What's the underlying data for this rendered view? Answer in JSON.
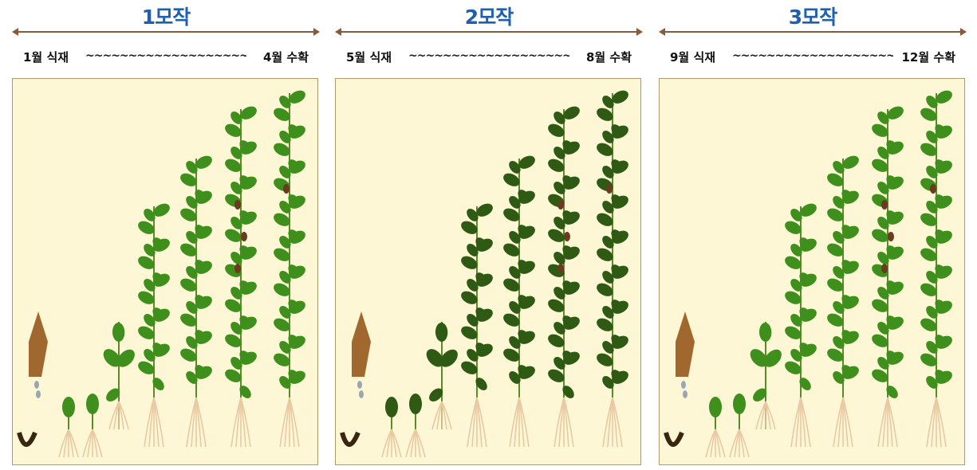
{
  "crops": [
    {
      "title": "1모작",
      "start": "1월 식재",
      "end": "4월 수확",
      "tilde": "~~~~~~~~~~~~~~~~~~~~~~~~~~~~~~~~~~~~"
    },
    {
      "title": "2모작",
      "start": "5월 식재",
      "end": "8월 수확",
      "tilde": "~~~~~~~~~~~~~~~~~~~~~~~~~~~~~~~~~~~~"
    },
    {
      "title": "3모작",
      "start": "9월 식재",
      "end": "12월 수확",
      "tilde": "~~~~~~~~~~~~~~~~~~~~~~~~~~~~~~~~~~~~"
    }
  ],
  "colors": {
    "title": "#1f5fb0",
    "panel_bg": "#fdf7d6",
    "panel_border": "#b09a6a",
    "leaf_light": "#3f8f1c",
    "leaf_dark": "#2f5a14",
    "stem": "#5a8a2a",
    "root": "#e9c9a2",
    "arrow": "#8a5a3c",
    "bean_pod": "#6b3a1f",
    "seed_bag": "#a0672f"
  },
  "icons": [
    "seed-bag-icon",
    "water-drop-icon",
    "bean-sprout-icon",
    "soybean-plant-icon"
  ]
}
